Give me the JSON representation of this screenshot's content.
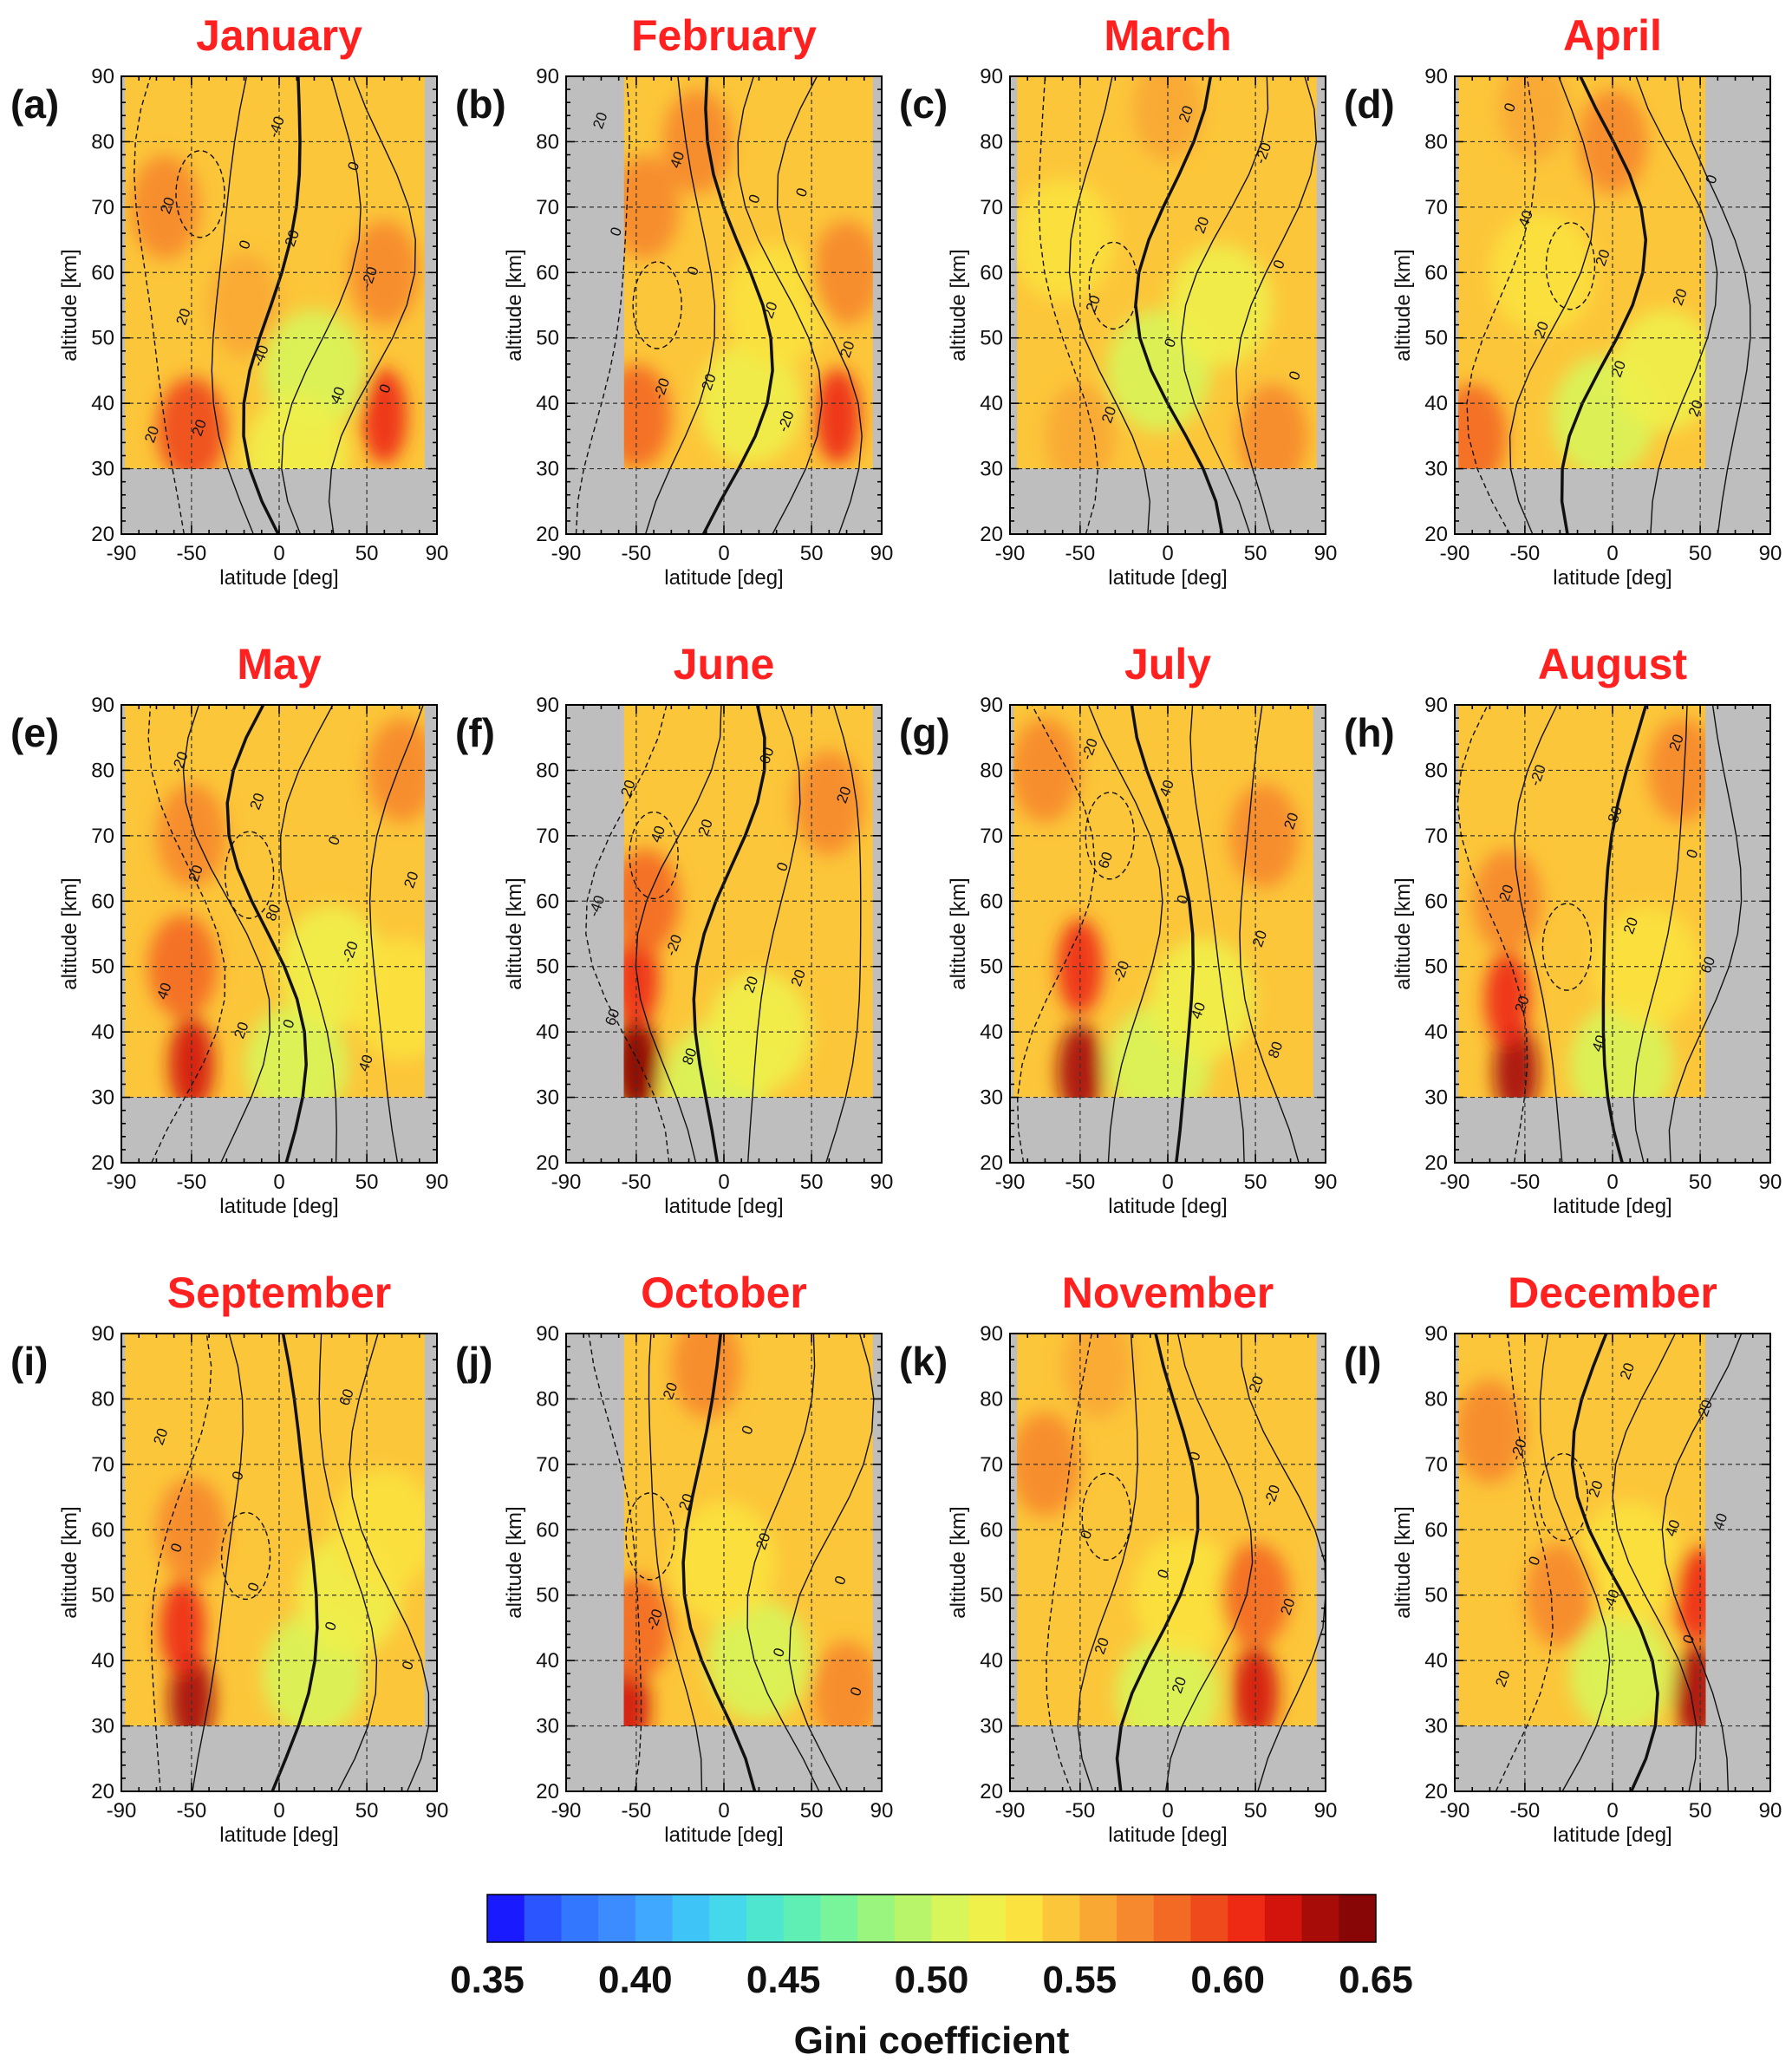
{
  "chart_data": {
    "type": "heatmap",
    "description_panels": "12 monthly latitude-altitude cross sections",
    "x_axis": {
      "label": "latitude [deg]",
      "range": [
        -90,
        90
      ],
      "ticks": [
        -90,
        -50,
        0,
        50,
        90
      ]
    },
    "y_axis": {
      "label": "altitude [km]",
      "range": [
        20,
        90
      ],
      "ticks": [
        20,
        30,
        40,
        50,
        60,
        70,
        80,
        90
      ]
    },
    "grid": true,
    "data_altitude_range": [
      30,
      90
    ],
    "colorbar": {
      "label": "Gini coefficient",
      "range": [
        0.35,
        0.65
      ],
      "ticks": [
        "0.35",
        "0.40",
        "0.45",
        "0.50",
        "0.55",
        "0.60",
        "0.65"
      ],
      "colors": [
        "#1a1aff",
        "#2a55ff",
        "#3377ff",
        "#3c8cff",
        "#40a8ff",
        "#3ec4f7",
        "#45d8ea",
        "#4fe6cf",
        "#5fefb4",
        "#78f49a",
        "#99f57d",
        "#b8f56a",
        "#d8f55a",
        "#f0f04a",
        "#fbe23f",
        "#fcc63a",
        "#f9a834",
        "#f6892d",
        "#f36a25",
        "#ef4a1c",
        "#ee2a14",
        "#d2140c",
        "#a80c08",
        "#880606"
      ],
      "orientation": "horizontal"
    },
    "panels": [
      {
        "letter": "(a)",
        "month": "January",
        "lat_coverage": [
          -88,
          83
        ],
        "hot_zones": [
          [
            -50,
            36,
            0.59
          ],
          [
            60,
            38,
            0.6
          ],
          [
            -65,
            70,
            0.575
          ],
          [
            60,
            60,
            0.575
          ],
          [
            -20,
            55,
            0.56
          ]
        ],
        "cool_zones": [
          [
            20,
            45,
            0.51
          ],
          [
            10,
            32,
            0.515
          ]
        ],
        "contour_labels": [
          "20",
          "0",
          "40",
          "20",
          "-40",
          "0",
          "20",
          "-40",
          "-20",
          "20",
          "20",
          "0"
        ]
      },
      {
        "letter": "(b)",
        "month": "February",
        "lat_coverage": [
          -57,
          85
        ],
        "hot_zones": [
          [
            -50,
            38,
            0.585
          ],
          [
            65,
            38,
            0.6
          ],
          [
            70,
            60,
            0.575
          ],
          [
            -15,
            80,
            0.575
          ],
          [
            -45,
            70,
            0.57
          ]
        ],
        "cool_zones": [
          [
            15,
            40,
            0.515
          ],
          [
            30,
            55,
            0.53
          ]
        ],
        "contour_labels": [
          "-20",
          "0",
          "20",
          "40",
          "20",
          "20",
          "0",
          "-20",
          "0",
          "20",
          "0"
        ]
      },
      {
        "letter": "(c)",
        "month": "March",
        "lat_coverage": [
          -86,
          85
        ],
        "hot_zones": [
          [
            -50,
            35,
            0.56
          ],
          [
            60,
            35,
            0.57
          ],
          [
            0,
            85,
            0.56
          ]
        ],
        "cool_zones": [
          [
            -5,
            45,
            0.5
          ],
          [
            -60,
            65,
            0.53
          ],
          [
            30,
            55,
            0.52
          ]
        ],
        "contour_labels": [
          "0",
          "-20",
          "20",
          "20",
          "0",
          "20",
          "20",
          "0"
        ]
      },
      {
        "letter": "(d)",
        "month": "April",
        "lat_coverage": [
          -88,
          53
        ],
        "hot_zones": [
          [
            -80,
            35,
            0.58
          ],
          [
            0,
            80,
            0.57
          ],
          [
            -45,
            85,
            0.56
          ]
        ],
        "cool_zones": [
          [
            -5,
            38,
            0.5
          ],
          [
            -40,
            60,
            0.53
          ],
          [
            30,
            45,
            0.52
          ]
        ],
        "contour_labels": [
          "20",
          "0",
          "20",
          "20",
          "40",
          "20",
          "0",
          "20"
        ]
      },
      {
        "letter": "(e)",
        "month": "May",
        "lat_coverage": [
          -88,
          83
        ],
        "hot_zones": [
          [
            -50,
            35,
            0.62
          ],
          [
            -55,
            50,
            0.585
          ],
          [
            -50,
            70,
            0.565
          ],
          [
            70,
            80,
            0.565
          ]
        ],
        "cool_zones": [
          [
            10,
            35,
            0.505
          ],
          [
            30,
            50,
            0.52
          ],
          [
            70,
            45,
            0.53
          ]
        ],
        "contour_labels": [
          "20",
          "20",
          "0",
          "40",
          "20",
          "-20",
          "-20",
          "80",
          "40",
          "20",
          "0"
        ]
      },
      {
        "letter": "(f)",
        "month": "June",
        "lat_coverage": [
          -57,
          85
        ],
        "hot_zones": [
          [
            -50,
            35,
            0.65
          ],
          [
            -50,
            48,
            0.61
          ],
          [
            -45,
            60,
            0.585
          ],
          [
            60,
            75,
            0.57
          ]
        ],
        "cool_zones": [
          [
            -5,
            32,
            0.5
          ],
          [
            20,
            40,
            0.52
          ]
        ],
        "contour_labels": [
          "40",
          "20",
          "20",
          "-20",
          "60",
          "-40",
          "80",
          "0",
          "60",
          "20",
          "20",
          "20"
        ]
      },
      {
        "letter": "(g)",
        "month": "July",
        "lat_coverage": [
          -88,
          83
        ],
        "hot_zones": [
          [
            -50,
            34,
            0.635
          ],
          [
            -50,
            50,
            0.605
          ],
          [
            55,
            70,
            0.575
          ],
          [
            -70,
            80,
            0.565
          ]
        ],
        "cool_zones": [
          [
            -5,
            35,
            0.505
          ],
          [
            20,
            45,
            0.52
          ]
        ],
        "contour_labels": [
          "40",
          "20",
          "-20",
          "0",
          "80",
          "60",
          "40",
          "20",
          "-20"
        ]
      },
      {
        "letter": "(h)",
        "month": "August",
        "lat_coverage": [
          -88,
          53
        ],
        "hot_zones": [
          [
            -55,
            34,
            0.63
          ],
          [
            -60,
            45,
            0.6
          ],
          [
            -60,
            60,
            0.575
          ],
          [
            40,
            80,
            0.57
          ]
        ],
        "cool_zones": [
          [
            5,
            35,
            0.51
          ],
          [
            20,
            50,
            0.525
          ]
        ],
        "contour_labels": [
          "20",
          "20",
          "40",
          "0",
          "20",
          "80",
          "60",
          "-20",
          "20"
        ]
      },
      {
        "letter": "(i)",
        "month": "September",
        "lat_coverage": [
          -88,
          83
        ],
        "hot_zones": [
          [
            -50,
            34,
            0.635
          ],
          [
            -55,
            45,
            0.6
          ],
          [
            -50,
            60,
            0.57
          ]
        ],
        "cool_zones": [
          [
            20,
            38,
            0.5
          ],
          [
            40,
            50,
            0.515
          ],
          [
            60,
            60,
            0.53
          ]
        ],
        "contour_labels": [
          "0",
          "0",
          "0",
          "20",
          "0",
          "60",
          "0"
        ]
      },
      {
        "letter": "(j)",
        "month": "October",
        "lat_coverage": [
          -57,
          85
        ],
        "hot_zones": [
          [
            -55,
            33,
            0.62
          ],
          [
            -50,
            45,
            0.585
          ],
          [
            -10,
            85,
            0.57
          ],
          [
            70,
            35,
            0.565
          ]
        ],
        "cool_zones": [
          [
            20,
            40,
            0.505
          ],
          [
            0,
            55,
            0.525
          ]
        ],
        "contour_labels": [
          "-20",
          "0",
          "0",
          "20",
          "20",
          "0",
          "20",
          "0"
        ]
      },
      {
        "letter": "(k)",
        "month": "November",
        "lat_coverage": [
          -86,
          85
        ],
        "hot_zones": [
          [
            50,
            35,
            0.62
          ],
          [
            50,
            50,
            0.585
          ],
          [
            -70,
            70,
            0.565
          ],
          [
            -40,
            85,
            0.56
          ]
        ],
        "cool_zones": [
          [
            0,
            35,
            0.505
          ],
          [
            10,
            50,
            0.525
          ]
        ],
        "contour_labels": [
          "0",
          "20",
          "0",
          "20",
          "-20",
          "20",
          "0",
          "20"
        ]
      },
      {
        "letter": "(l)",
        "month": "December",
        "lat_coverage": [
          -88,
          53
        ],
        "hot_zones": [
          [
            48,
            35,
            0.63
          ],
          [
            48,
            50,
            0.61
          ],
          [
            -70,
            75,
            0.575
          ],
          [
            -30,
            50,
            0.565
          ]
        ],
        "cool_zones": [
          [
            5,
            38,
            0.5
          ],
          [
            10,
            55,
            0.525
          ]
        ],
        "contour_labels": [
          "40",
          "20",
          "20",
          "0",
          "-20",
          "-40",
          "-20",
          "0",
          "20",
          "40"
        ]
      }
    ]
  }
}
